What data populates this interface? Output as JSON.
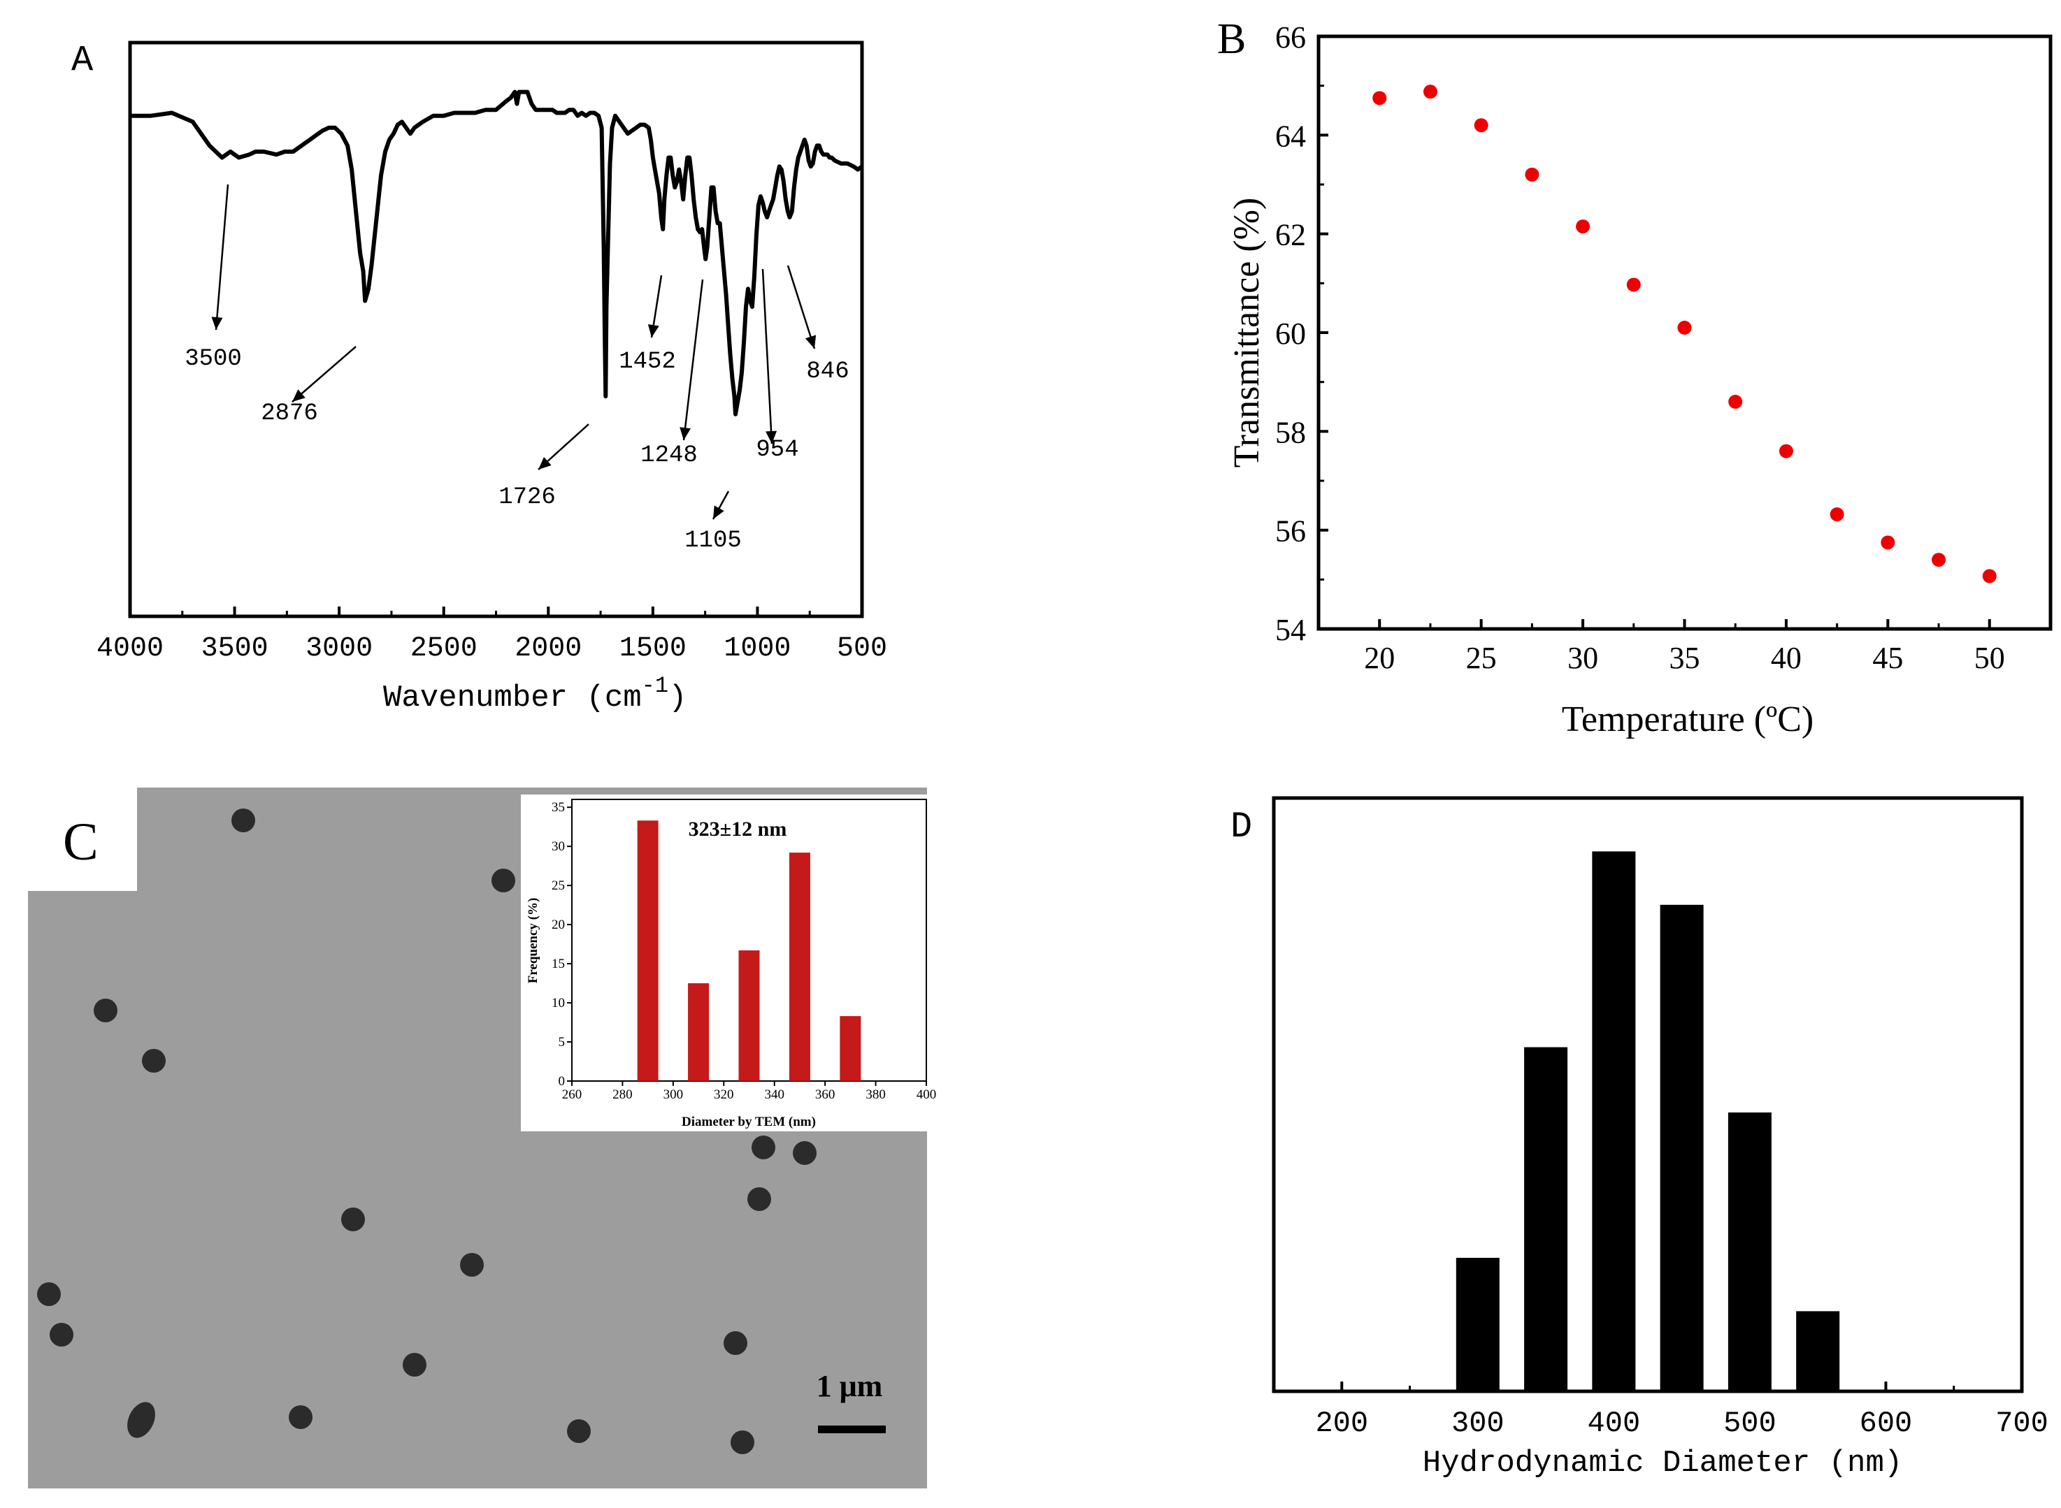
{
  "panel_labels": {
    "a": "A",
    "b": "B",
    "c": "C",
    "d": "D"
  },
  "colors": {
    "axis": "#000000",
    "point": "#ee0000",
    "bar_d": "#000000",
    "bar_c": "#c41a1a",
    "tem_bg": "#9d9d9d",
    "particle": "#2b2b2b"
  },
  "chart_data": [
    {
      "id": "A",
      "type": "line",
      "title": "",
      "xlabel": "Wavenumber (cm",
      "xlabel_sup": "-1",
      "xlabel_close": ")",
      "ylabel": "",
      "xlim": [
        4000,
        500
      ],
      "xticks": [
        "4000",
        "3500",
        "3000",
        "2500",
        "2000",
        "1500",
        "1000",
        "500"
      ],
      "xtick_values": [
        4000,
        3500,
        3000,
        2500,
        2000,
        1500,
        1000,
        500
      ],
      "ylim": [
        0,
        100
      ],
      "series": [
        {
          "name": "FTIR spectrum",
          "x": [
            4000,
            3900,
            3800,
            3700,
            3620,
            3560,
            3520,
            3480,
            3430,
            3400,
            3360,
            3300,
            3260,
            3220,
            3180,
            3140,
            3100,
            3080,
            3050,
            3020,
            2990,
            2960,
            2940,
            2920,
            2900,
            2885,
            2876,
            2860,
            2845,
            2830,
            2815,
            2800,
            2780,
            2760,
            2740,
            2720,
            2700,
            2680,
            2660,
            2640,
            2620,
            2600,
            2550,
            2500,
            2450,
            2400,
            2350,
            2300,
            2250,
            2200,
            2180,
            2160,
            2150,
            2140,
            2120,
            2100,
            2080,
            2060,
            2040,
            2020,
            2000,
            1980,
            1960,
            1940,
            1920,
            1900,
            1880,
            1860,
            1840,
            1820,
            1800,
            1780,
            1760,
            1745,
            1735,
            1730,
            1726,
            1722,
            1715,
            1705,
            1695,
            1680,
            1660,
            1640,
            1620,
            1600,
            1580,
            1560,
            1540,
            1520,
            1510,
            1500,
            1490,
            1480,
            1470,
            1460,
            1452,
            1445,
            1435,
            1425,
            1415,
            1405,
            1395,
            1385,
            1375,
            1365,
            1355,
            1345,
            1335,
            1325,
            1315,
            1305,
            1295,
            1285,
            1275,
            1265,
            1255,
            1248,
            1240,
            1230,
            1220,
            1210,
            1200,
            1190,
            1180,
            1170,
            1160,
            1150,
            1140,
            1130,
            1120,
            1110,
            1105,
            1095,
            1085,
            1075,
            1065,
            1055,
            1045,
            1035,
            1025,
            1015,
            1005,
            995,
            985,
            975,
            965,
            954,
            945,
            935,
            925,
            915,
            905,
            895,
            885,
            875,
            865,
            855,
            846,
            835,
            825,
            815,
            805,
            795,
            785,
            775,
            765,
            755,
            745,
            735,
            725,
            715,
            705,
            695,
            685,
            675,
            665,
            655,
            645,
            630,
            600,
            570,
            540,
            520,
            500
          ],
          "y": [
            82,
            82,
            82.5,
            81,
            77,
            75,
            76,
            75,
            75.5,
            76,
            76,
            75.5,
            76,
            76,
            77,
            78,
            79,
            79.5,
            80,
            80,
            79,
            77,
            73,
            66,
            59,
            56,
            51,
            53,
            57,
            62,
            67,
            72,
            76,
            78,
            79,
            80.5,
            81,
            80,
            79,
            80,
            80.5,
            81,
            82,
            82,
            82.5,
            82.5,
            82.5,
            83,
            83,
            84.5,
            85,
            86,
            84,
            86,
            86,
            86,
            84,
            83,
            83,
            83,
            83,
            83,
            82.5,
            82.5,
            82.5,
            83,
            83,
            82,
            82.5,
            82,
            82.5,
            82.5,
            82,
            80,
            60,
            45,
            35,
            50,
            60,
            74,
            80,
            82,
            81,
            80,
            79,
            79.5,
            80,
            80.5,
            80.5,
            80,
            78,
            75,
            73,
            71,
            69,
            65,
            63,
            68,
            72,
            75,
            75,
            72,
            70,
            71,
            73,
            71,
            68,
            72,
            75,
            75,
            72,
            68,
            65,
            63,
            62.5,
            63,
            60,
            58,
            60,
            65,
            70,
            70,
            66,
            64,
            64,
            60,
            56,
            52,
            47,
            42,
            38,
            35,
            32,
            34,
            36,
            39,
            44,
            50,
            53,
            51,
            50,
            55,
            62,
            67,
            68.5,
            67.5,
            66,
            65,
            66,
            67,
            68,
            70,
            72,
            73.5,
            73,
            71,
            68,
            66,
            65,
            66,
            70,
            73,
            75,
            76,
            77,
            78,
            77,
            74.5,
            73.5,
            74,
            76,
            77,
            77,
            76,
            75.5,
            75.5,
            75.5,
            75,
            75,
            74.5,
            74,
            74,
            73.5,
            73,
            73.5
          ]
        }
      ],
      "annotations": [
        {
          "label": "3500",
          "peak": 3500
        },
        {
          "label": "2876",
          "peak": 2876
        },
        {
          "label": "1726",
          "peak": 1726
        },
        {
          "label": "1452",
          "peak": 1452
        },
        {
          "label": "1248",
          "peak": 1248
        },
        {
          "label": "1105",
          "peak": 1105
        },
        {
          "label": "954",
          "peak": 954
        },
        {
          "label": "846",
          "peak": 846
        }
      ]
    },
    {
      "id": "B",
      "type": "scatter",
      "title": "",
      "xlabel": "Temperature (ºC)",
      "ylabel": "Transmittance (%)",
      "xlim": [
        17,
        53
      ],
      "ylim": [
        54,
        66
      ],
      "xticks": [
        "20",
        "25",
        "30",
        "35",
        "40",
        "45",
        "50"
      ],
      "xtick_values": [
        20,
        25,
        30,
        35,
        40,
        45,
        50
      ],
      "yticks": [
        "54",
        "56",
        "58",
        "60",
        "62",
        "64",
        "66"
      ],
      "ytick_values": [
        54,
        56,
        58,
        60,
        62,
        64,
        66
      ],
      "series": [
        {
          "name": "Transmittance",
          "x": [
            20,
            22.5,
            25,
            27.5,
            30,
            32.5,
            35,
            37.5,
            40,
            42.5,
            45,
            47.5,
            50
          ],
          "y": [
            64.75,
            64.88,
            64.2,
            63.2,
            62.15,
            60.97,
            60.1,
            58.6,
            57.6,
            56.32,
            55.75,
            55.4,
            55.07
          ]
        }
      ]
    },
    {
      "id": "C_inset",
      "type": "bar",
      "title": "323±12 nm",
      "xlabel": "Diameter by TEM (nm)",
      "ylabel": "Frequency (%)",
      "xlim": [
        260,
        400
      ],
      "ylim": [
        0,
        36
      ],
      "xticks": [
        "260",
        "280",
        "300",
        "320",
        "340",
        "360",
        "380",
        "400"
      ],
      "xtick_values": [
        260,
        280,
        300,
        320,
        340,
        360,
        380,
        400
      ],
      "yticks": [
        "0",
        "5",
        "10",
        "15",
        "20",
        "25",
        "30",
        "35"
      ],
      "ytick_values": [
        0,
        5,
        10,
        15,
        20,
        25,
        30,
        35
      ],
      "categories": [
        "290",
        "310",
        "330",
        "350",
        "370"
      ],
      "x": [
        290,
        310,
        330,
        350,
        370
      ],
      "values": [
        33.3,
        12.5,
        16.7,
        29.2,
        8.3
      ]
    },
    {
      "id": "D",
      "type": "bar",
      "title": "",
      "xlabel": "Hydrodynamic Diameter (nm)",
      "ylabel": "",
      "xlim": [
        150,
        700
      ],
      "ylim": [
        0,
        100
      ],
      "xticks": [
        "200",
        "300",
        "400",
        "500",
        "600",
        "700"
      ],
      "xtick_values": [
        200,
        300,
        400,
        500,
        600,
        700
      ],
      "categories": [
        "300",
        "350",
        "400",
        "450",
        "500",
        "550"
      ],
      "x": [
        300,
        350,
        400,
        450,
        500,
        550
      ],
      "values": [
        22.5,
        58,
        91,
        82,
        47,
        13.5
      ]
    }
  ],
  "tem_image": {
    "scale_bar_label": "1 μm"
  }
}
